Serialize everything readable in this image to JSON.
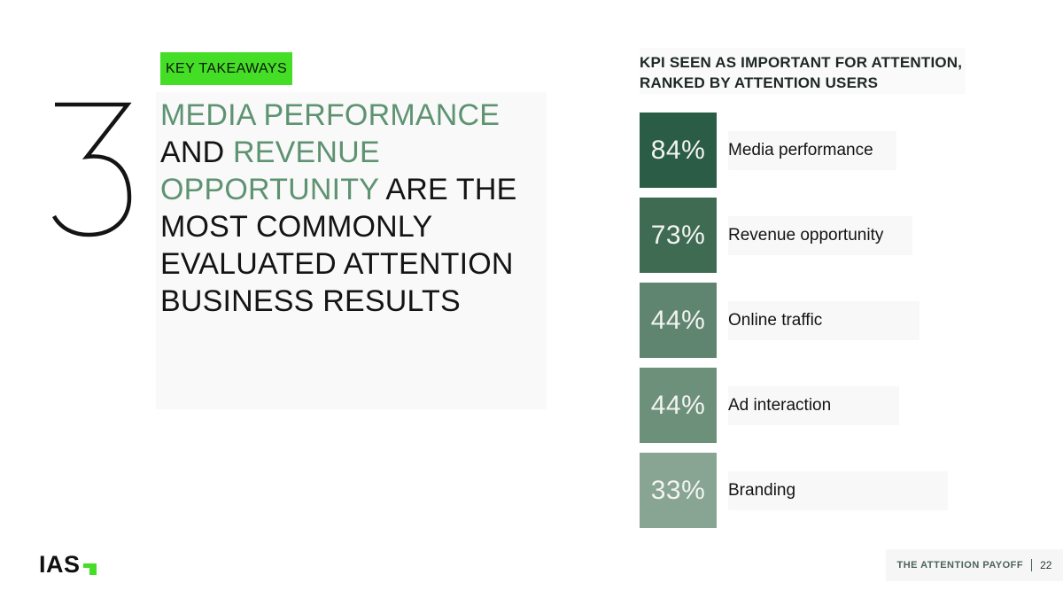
{
  "slide": {
    "number": "3",
    "badge_label": "KEY TAKEAWAYS",
    "heading_lines": [
      [
        {
          "text": "MEDIA PERFORMANCE",
          "style": "green"
        }
      ],
      [
        {
          "text": "AND ",
          "style": "dark"
        },
        {
          "text": "REVENUE",
          "style": "green"
        }
      ],
      [
        {
          "text": "OPPORTUNITY ",
          "style": "green"
        },
        {
          "text": "ARE THE",
          "style": "dark"
        }
      ],
      [
        {
          "text": "MOST COMMONLY",
          "style": "dark"
        }
      ],
      [
        {
          "text": "EVALUATED ATTENTION",
          "style": "dark"
        }
      ],
      [
        {
          "text": "BUSINESS RESULTS",
          "style": "dark"
        }
      ]
    ]
  },
  "chart": {
    "title_line1": "KPI SEEN AS IMPORTANT FOR ATTENTION,",
    "title_line2": "RANKED BY ATTENTION USERS"
  },
  "chart_data": {
    "type": "bar",
    "title": "KPI SEEN AS IMPORTANT FOR ATTENTION, RANKED BY ATTENTION USERS",
    "categories": [
      "Media performance",
      "Revenue opportunity",
      "Online traffic",
      "Ad interaction",
      "Branding"
    ],
    "values": [
      84,
      73,
      44,
      44,
      33
    ],
    "value_labels": [
      "84%",
      "73%",
      "44%",
      "44%",
      "33%"
    ],
    "bar_colors": [
      "#2b5c45",
      "#3f6b53",
      "#5f8570",
      "#6d907b",
      "#88a492"
    ],
    "xlabel": "",
    "ylabel": "",
    "value_range": [
      0,
      100
    ],
    "legend": "none",
    "grid": "off"
  },
  "footer": {
    "report_title": "THE ATTENTION PAYOFF",
    "page_number": "22"
  },
  "logo": {
    "text": "IAS"
  },
  "colors": {
    "accent_bright_green": "#45de26",
    "heading_green": "#5e9372",
    "text_dark": "#141414",
    "footer_text": "#4b635b"
  }
}
